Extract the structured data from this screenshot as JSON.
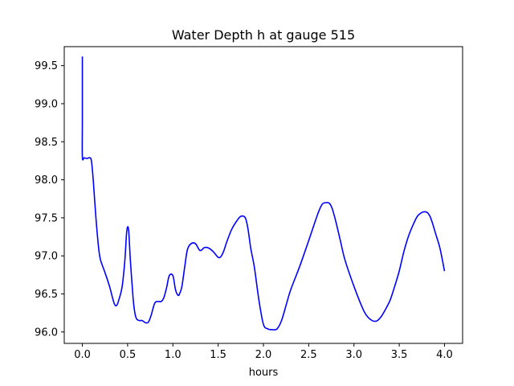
{
  "chart_data": {
    "type": "line",
    "title": "Water Depth h at gauge 515",
    "xlabel": "hours",
    "ylabel": "",
    "xlim": [
      -0.2,
      4.2
    ],
    "ylim": [
      95.85,
      99.75
    ],
    "x_ticks": [
      0.0,
      0.5,
      1.0,
      1.5,
      2.0,
      2.5,
      3.0,
      3.5,
      4.0
    ],
    "x_tick_labels": [
      "0.0",
      "0.5",
      "1.0",
      "1.5",
      "2.0",
      "2.5",
      "3.0",
      "3.5",
      "4.0"
    ],
    "y_ticks": [
      96.0,
      96.5,
      97.0,
      97.5,
      98.0,
      98.5,
      99.0,
      99.5
    ],
    "y_tick_labels": [
      "96.0",
      "96.5",
      "97.0",
      "97.5",
      "98.0",
      "98.5",
      "99.0",
      "99.5"
    ],
    "grid": false,
    "series": [
      {
        "color": "#0000ff",
        "x": [
          0.0,
          0.0,
          0.0,
          0.02,
          0.05,
          0.08,
          0.1,
          0.12,
          0.15,
          0.18,
          0.2,
          0.25,
          0.3,
          0.35,
          0.38,
          0.41,
          0.44,
          0.47,
          0.49,
          0.51,
          0.53,
          0.56,
          0.58,
          0.6,
          0.63,
          0.66,
          0.7,
          0.73,
          0.76,
          0.8,
          0.84,
          0.87,
          0.9,
          0.93,
          0.96,
          1.0,
          1.03,
          1.06,
          1.08,
          1.1,
          1.13,
          1.16,
          1.2,
          1.25,
          1.3,
          1.35,
          1.4,
          1.45,
          1.5,
          1.53,
          1.56,
          1.6,
          1.65,
          1.7,
          1.75,
          1.8,
          1.83,
          1.86,
          1.9,
          1.95,
          2.0,
          2.05,
          2.1,
          2.15,
          2.2,
          2.25,
          2.3,
          2.4,
          2.5,
          2.6,
          2.65,
          2.7,
          2.73,
          2.76,
          2.8,
          2.85,
          2.9,
          3.0,
          3.1,
          3.15,
          3.2,
          3.23,
          3.26,
          3.3,
          3.35,
          3.4,
          3.45,
          3.5,
          3.55,
          3.6,
          3.65,
          3.7,
          3.75,
          3.78,
          3.81,
          3.84,
          3.87,
          3.9,
          3.95,
          4.0
        ],
        "values": [
          99.62,
          98.8,
          98.3,
          98.29,
          98.28,
          98.29,
          98.25,
          98.0,
          97.5,
          97.1,
          96.95,
          96.78,
          96.6,
          96.38,
          96.35,
          96.45,
          96.6,
          96.95,
          97.32,
          97.35,
          96.95,
          96.45,
          96.25,
          96.17,
          96.15,
          96.15,
          96.12,
          96.13,
          96.22,
          96.38,
          96.4,
          96.4,
          96.45,
          96.58,
          96.74,
          96.74,
          96.55,
          96.48,
          96.52,
          96.6,
          96.85,
          97.08,
          97.16,
          97.16,
          97.07,
          97.11,
          97.1,
          97.05,
          96.98,
          96.99,
          97.06,
          97.2,
          97.35,
          97.45,
          97.52,
          97.5,
          97.35,
          97.1,
          96.85,
          96.42,
          96.1,
          96.04,
          96.03,
          96.04,
          96.15,
          96.35,
          96.55,
          96.86,
          97.2,
          97.55,
          97.68,
          97.7,
          97.69,
          97.62,
          97.45,
          97.2,
          96.95,
          96.6,
          96.3,
          96.2,
          96.15,
          96.14,
          96.15,
          96.2,
          96.3,
          96.42,
          96.6,
          96.8,
          97.05,
          97.25,
          97.4,
          97.52,
          97.57,
          97.58,
          97.57,
          97.52,
          97.42,
          97.3,
          97.1,
          96.8
        ]
      }
    ]
  }
}
